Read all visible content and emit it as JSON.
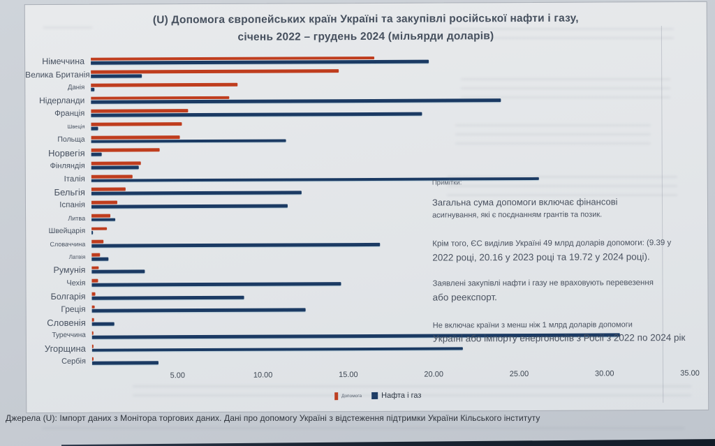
{
  "title_line1": "(U) Допомога європейських країн Україні та закупівлі російської нафти і газу,",
  "title_line2": "січень 2022 – грудень 2024 (мільярди доларів)",
  "notes": {
    "heading": "Примітки:",
    "items": [
      {
        "lines": [
          "Загальна сума допомоги включає фінансові",
          "асигнування, які є поєднанням грантів та позик."
        ]
      },
      {
        "lines": [
          "Крім того, ЄС виділив Україні 49 млрд доларів допомоги: (9.39 у",
          "2022 році, 20.16 у 2023 році та 19.72 у 2024 році)."
        ]
      },
      {
        "lines": [
          "Заявлені закупівлі нафти і газу не враховують перевезення",
          "або реекспорт."
        ]
      },
      {
        "lines": [
          "Не включає країни з менш ніж 1 млрд доларів допомоги",
          "Україні або імпорту енергоносіїв з Росії з 2022 по 2024 рік"
        ]
      }
    ]
  },
  "source": "Джерела (U): Імпорт даних з Монітора торгових даних. Дані про допомогу Україні з відстеження підтримки України Кільського інституту",
  "chart_data": {
    "type": "bar",
    "orientation": "horizontal",
    "title": "(U) Допомога європейських країн Україні та закупівлі російської нафти і газу, січень 2022 – грудень 2024 (мільярди доларів)",
    "xlabel": "мільярди доларів",
    "categories": [
      "Німеччина",
      "Велика Британія",
      "Данія",
      "Нідерланди",
      "Франція",
      "Швеція",
      "Польща",
      "Норвегія",
      "Фінляндія",
      "Італія",
      "Бельгія",
      "Іспанія",
      "Литва",
      "Швейцарія",
      "Словаччина",
      "Латвія",
      "Румунія",
      "Чехія",
      "Болгарія",
      "Греція",
      "Словенія",
      "Туреччина",
      "Угорщина",
      "Сербія"
    ],
    "series": [
      {
        "name": "Допомога",
        "color": "#bf3d1e",
        "values": [
          16.6,
          14.5,
          8.6,
          8.1,
          5.7,
          5.3,
          5.2,
          4.0,
          2.9,
          2.4,
          2.0,
          1.5,
          1.1,
          0.9,
          0.7,
          0.5,
          0.4,
          0.35,
          0.2,
          0.15,
          0.12,
          0.1,
          0.1,
          0.05
        ]
      },
      {
        "name": "Нафта і газ",
        "color": "#1b3a63",
        "values": [
          19.8,
          3.0,
          0.2,
          24.0,
          19.4,
          0.4,
          11.4,
          0.6,
          2.8,
          26.2,
          12.3,
          11.5,
          1.4,
          0.1,
          16.9,
          1.0,
          3.1,
          14.6,
          8.9,
          12.5,
          1.3,
          30.9,
          21.7,
          3.9
        ]
      }
    ],
    "xlim": [
      0,
      35
    ],
    "x_ticks": [
      5,
      10,
      15,
      20,
      25,
      30,
      35
    ],
    "x_tick_labels": [
      "5.00",
      "10.00",
      "15.00",
      "20.00",
      "25.00",
      "30.00",
      "35.00"
    ],
    "legend_position": "bottom",
    "grid": false
  }
}
